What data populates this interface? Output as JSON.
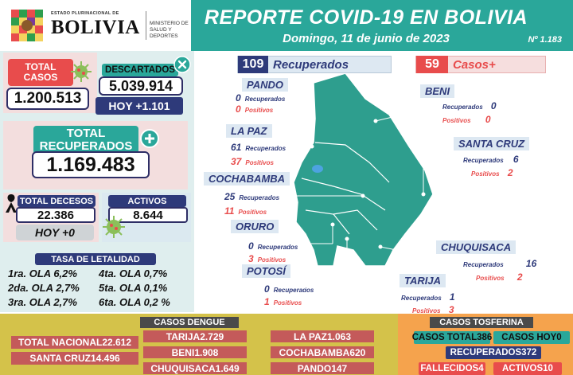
{
  "header": {
    "estado": "ESTADO PLURINACIONAL DE",
    "bolivia": "BOLIVIA",
    "ministry_line1": "MINISTERIO DE",
    "ministry_line2": "SALUD Y DEPORTES",
    "title": "REPORTE COVID-19 EN BOLIVIA",
    "date": "Domingo, 11 de junio de 2023",
    "report_number": "Nº 1.183"
  },
  "summary": {
    "total_casos_label": "TOTAL CASOS",
    "total_casos_value": "1.200.513",
    "descartados_label": "DESCARTADOS",
    "descartados_value": "5.039.914",
    "descartados_hoy_label": "HOY +",
    "descartados_hoy_value": "1.101",
    "recuperados_label": "TOTAL RECUPERADOS",
    "recuperados_value": "1.169.483",
    "decesos_label": "TOTAL DECESOS",
    "decesos_value": "22.386",
    "decesos_hoy_label": "HOY +",
    "decesos_hoy_value": "0",
    "activos_label": "ACTIVOS",
    "activos_value": "8.644"
  },
  "letalidad": {
    "title": "TASA DE LETALIDAD",
    "rows": [
      [
        "1ra. OLA 6,2%",
        "4ta. OLA 0,7%"
      ],
      [
        "2da. OLA 2,7%",
        "5ta. OLA 0,1%"
      ],
      [
        "3ra. OLA 2,7%",
        "6ta. OLA 0,2 %"
      ]
    ]
  },
  "map": {
    "recuperados_count": "109",
    "recuperados_label": "Recuperados",
    "casos_count": "59",
    "casos_label": "Casos+",
    "recuperados_word": "Recuperados",
    "positivos_word": "Positivos",
    "departments": [
      {
        "name": "PANDO",
        "recuperados": "0",
        "positivos": "0"
      },
      {
        "name": "BENI",
        "recuperados": "0",
        "positivos": "0"
      },
      {
        "name": "LA PAZ",
        "recuperados": "61",
        "positivos": "37"
      },
      {
        "name": "SANTA CRUZ",
        "recuperados": "6",
        "positivos": "2"
      },
      {
        "name": "COCHABAMBA",
        "recuperados": "25",
        "positivos": "11"
      },
      {
        "name": "ORURO",
        "recuperados": "0",
        "positivos": "3"
      },
      {
        "name": "CHUQUISACA",
        "recuperados": "16",
        "positivos": "2"
      },
      {
        "name": "POTOSÍ",
        "recuperados": "0",
        "positivos": "1"
      },
      {
        "name": "TARIJA",
        "recuperados": "1",
        "positivos": "3"
      }
    ]
  },
  "dengue": {
    "title": "CASOS DENGUE",
    "total_nacional_label": "TOTAL NACIONAL",
    "total_nacional_value": "22.612",
    "santa_cruz_label": "SANTA CRUZ",
    "santa_cruz_value": "14.496",
    "cells": [
      {
        "label": "TARIJA",
        "value": "2.729"
      },
      {
        "label": "BENI",
        "value": "1.908"
      },
      {
        "label": "CHUQUISACA",
        "value": "1.649"
      },
      {
        "label": "LA PAZ",
        "value": "1.063"
      },
      {
        "label": "COCHABAMBA",
        "value": "620"
      },
      {
        "label": "PANDO",
        "value": "147"
      }
    ]
  },
  "tosferina": {
    "title": "CASOS TOSFERINA",
    "casos_total_label": "CASOS TOTAL",
    "casos_total_value": "386",
    "casos_hoy_label": "CASOS HOY",
    "casos_hoy_value": "0",
    "recuperados_label": "RECUPERADOS",
    "recuperados_value": "372",
    "fallecidos_label": "FALLECIDOS",
    "fallecidos_value": "4",
    "activos_label": "ACTIVOS",
    "activos_value": "10"
  },
  "colors": {
    "teal": "#2aa79a",
    "navy": "#2e3a7a",
    "red": "#e84c4c",
    "map_green": "#2e9e8e",
    "dengue_band": "#d4c24a",
    "tosferina_band": "#f5a34d"
  },
  "icons": [
    "bolivia-seal-icon",
    "virus-icon",
    "check-icon",
    "plus-icon",
    "mourning-ribbon-icon",
    "virus-icon"
  ]
}
